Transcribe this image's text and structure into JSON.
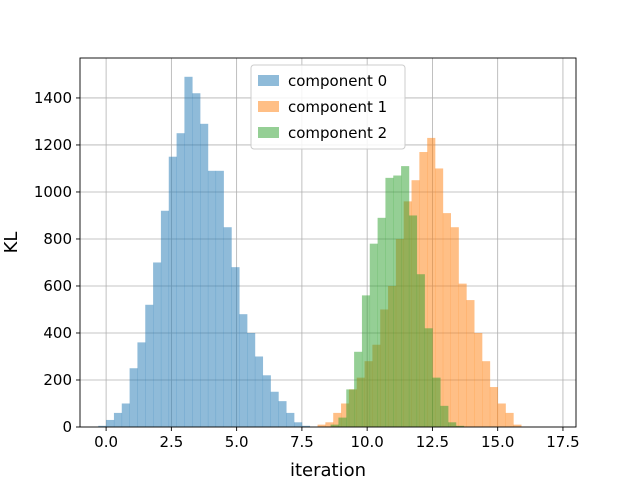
{
  "chart_data": {
    "type": "histogram",
    "title": "",
    "xlabel": "iteration",
    "ylabel": "KL",
    "xlim": [
      -1.0,
      18.0
    ],
    "ylim": [
      0,
      1570
    ],
    "xticks": [
      0.0,
      2.5,
      5.0,
      7.5,
      10.0,
      12.5,
      15.0,
      17.5
    ],
    "xtick_labels": [
      "0.0",
      "2.5",
      "5.0",
      "7.5",
      "10.0",
      "12.5",
      "15.0",
      "17.5"
    ],
    "yticks": [
      0,
      200,
      400,
      600,
      800,
      1000,
      1200,
      1400
    ],
    "ytick_labels": [
      "0",
      "200",
      "400",
      "600",
      "800",
      "1000",
      "1200",
      "1400"
    ],
    "grid": true,
    "legend_position": "top-center",
    "series": [
      {
        "name": "component 0",
        "color": "#1f77b4",
        "opacity": 0.5,
        "bin_edges": [
          -0.3,
          0.0,
          0.3,
          0.6,
          0.9,
          1.2,
          1.5,
          1.8,
          2.1,
          2.4,
          2.7,
          3.0,
          3.3,
          3.6,
          3.9,
          4.2,
          4.5,
          4.8,
          5.1,
          5.4,
          5.7,
          6.0,
          6.3,
          6.6,
          6.9,
          7.2,
          7.5,
          7.8,
          8.1
        ],
        "counts": [
          5,
          30,
          60,
          100,
          250,
          360,
          520,
          700,
          920,
          1150,
          1250,
          1490,
          1420,
          1290,
          1090,
          1090,
          850,
          680,
          480,
          400,
          300,
          220,
          150,
          110,
          60,
          20,
          5,
          2
        ]
      },
      {
        "name": "component 1",
        "color": "#ff7f0e",
        "opacity": 0.5,
        "bin_edges": [
          8.1,
          8.4,
          8.7,
          9.0,
          9.3,
          9.6,
          9.9,
          10.2,
          10.5,
          10.8,
          11.1,
          11.4,
          11.7,
          12.0,
          12.3,
          12.6,
          12.9,
          13.2,
          13.5,
          13.8,
          14.1,
          14.4,
          14.7,
          15.0,
          15.3,
          15.6,
          15.9,
          16.2
        ],
        "counts": [
          10,
          20,
          60,
          100,
          160,
          210,
          280,
          350,
          500,
          600,
          800,
          960,
          1050,
          1170,
          1230,
          1100,
          910,
          850,
          610,
          540,
          400,
          280,
          170,
          100,
          60,
          10,
          2
        ]
      },
      {
        "name": "component 2",
        "color": "#2ca02c",
        "opacity": 0.5,
        "bin_edges": [
          8.6,
          8.9,
          9.2,
          9.5,
          9.8,
          10.1,
          10.4,
          10.7,
          11.0,
          11.3,
          11.6,
          11.9,
          12.2,
          12.5,
          12.8,
          13.1,
          13.4,
          13.7
        ],
        "counts": [
          10,
          40,
          160,
          320,
          560,
          780,
          890,
          1060,
          1070,
          1110,
          900,
          650,
          420,
          210,
          90,
          20,
          5
        ]
      }
    ]
  }
}
